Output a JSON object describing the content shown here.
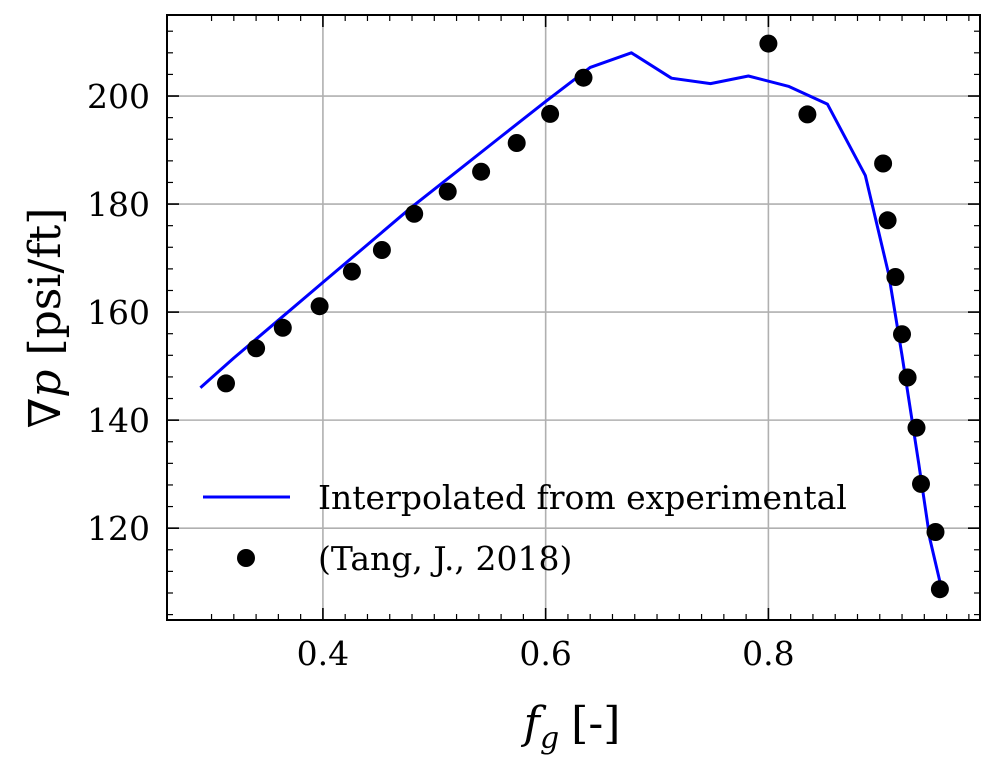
{
  "chart_data": {
    "type": "line",
    "xlabel_main": "f",
    "xlabel_sub": "g",
    "xlabel_unit": "[-]",
    "ylabel_symbol": "∇p",
    "ylabel_unit": "[psi/ft]",
    "xlim": [
      0.26,
      0.99
    ],
    "ylim": [
      103,
      215
    ],
    "x_ticks": [
      0.4,
      0.6,
      0.8
    ],
    "x_tick_labels": [
      "0.4",
      "0.6",
      "0.8"
    ],
    "y_ticks": [
      120,
      140,
      160,
      180,
      200
    ],
    "y_tick_labels": [
      "120",
      "140",
      "160",
      "180",
      "200"
    ],
    "grid": true,
    "legend_position": "lower-left",
    "series": [
      {
        "name": "Interpolated from experimental",
        "kind": "line",
        "color": "#0000ff",
        "x": [
          0.29,
          0.32,
          0.36,
          0.4,
          0.44,
          0.48,
          0.52,
          0.56,
          0.6,
          0.64,
          0.677,
          0.713,
          0.748,
          0.782,
          0.818,
          0.853,
          0.887,
          0.908,
          0.92,
          0.935,
          0.945,
          0.957
        ],
        "y": [
          146,
          151.5,
          158.5,
          165.5,
          172.5,
          179.5,
          186,
          192.5,
          199,
          205.3,
          208,
          203.3,
          202.3,
          203.7,
          201.8,
          198.5,
          185.3,
          167,
          152,
          132,
          118,
          107.5
        ]
      },
      {
        "name": "(Tang, J., 2018)",
        "kind": "scatter",
        "color": "#000000",
        "x": [
          0.313,
          0.34,
          0.364,
          0.397,
          0.426,
          0.453,
          0.482,
          0.512,
          0.542,
          0.574,
          0.604,
          0.634,
          0.8,
          0.835,
          0.903,
          0.907,
          0.914,
          0.92,
          0.925,
          0.933,
          0.937,
          0.95,
          0.954
        ],
        "y": [
          146.8,
          153.3,
          157.1,
          161.1,
          167.5,
          171.5,
          178.2,
          182.3,
          186.0,
          191.3,
          196.7,
          203.4,
          209.7,
          196.6,
          187.5,
          177.0,
          166.5,
          155.9,
          147.9,
          138.6,
          128.2,
          119.3,
          108.7
        ]
      }
    ]
  }
}
